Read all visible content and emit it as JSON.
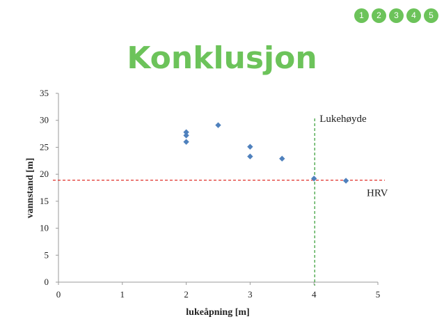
{
  "nav": {
    "items": [
      "1",
      "2",
      "3",
      "4",
      "5"
    ],
    "color": "#6cc35a"
  },
  "slide": {
    "title": "Konklusjon",
    "title_color": "#6cc35a"
  },
  "chart_data": {
    "type": "scatter",
    "xlabel": "lukeåpning [m]",
    "ylabel": "vannstand [m]",
    "xlim": [
      0,
      5
    ],
    "ylim": [
      0,
      35
    ],
    "xticks": [
      "0",
      "1",
      "2",
      "3",
      "4",
      "5"
    ],
    "yticks": [
      "0",
      "5",
      "10",
      "15",
      "20",
      "25",
      "30",
      "35"
    ],
    "grid": false,
    "marker_color": "#4f81bd",
    "points": [
      {
        "x": 2,
        "y": 27.8
      },
      {
        "x": 2,
        "y": 27.2
      },
      {
        "x": 2,
        "y": 26.0
      },
      {
        "x": 2.5,
        "y": 29.1
      },
      {
        "x": 3,
        "y": 25.1
      },
      {
        "x": 3,
        "y": 23.3
      },
      {
        "x": 3.5,
        "y": 22.9
      },
      {
        "x": 4,
        "y": 19.2
      },
      {
        "x": 4.5,
        "y": 18.8
      }
    ],
    "reference_lines": [
      {
        "orientation": "horizontal",
        "value": 18.9,
        "label": "HRV",
        "color": "#e0302a"
      },
      {
        "orientation": "vertical",
        "value": 4,
        "label": "Lukehøyde",
        "color": "#2e9b2e"
      }
    ]
  }
}
